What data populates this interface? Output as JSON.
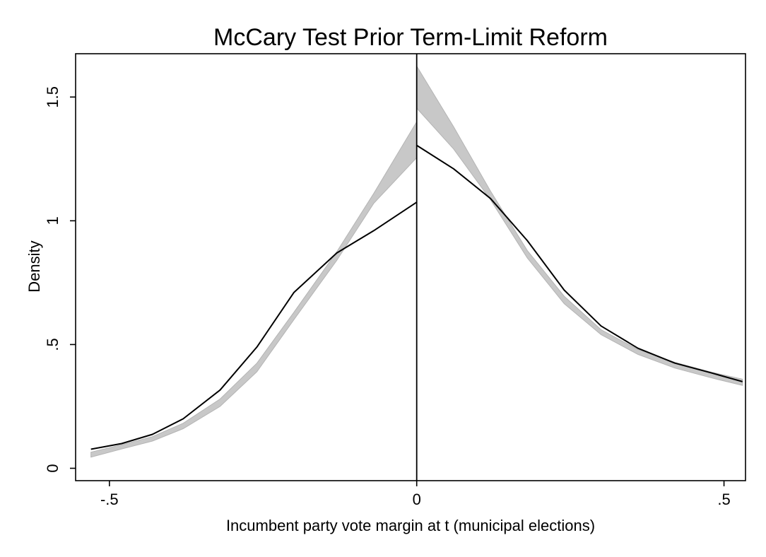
{
  "chart_data": {
    "type": "line",
    "title": "McCary Test Prior Term-Limit Reform",
    "xlabel": "Incumbent party vote margin at t (municipal elections)",
    "ylabel": "Density",
    "xlim": [
      -0.555,
      0.535
    ],
    "ylim": [
      -0.05,
      1.675
    ],
    "x_ticks": [
      {
        "value": -0.5,
        "label": "-.5"
      },
      {
        "value": 0,
        "label": "0"
      },
      {
        "value": 0.5,
        "label": ".5"
      }
    ],
    "y_ticks": [
      {
        "value": 0,
        "label": "0"
      },
      {
        "value": 0.5,
        "label": ".5"
      },
      {
        "value": 1,
        "label": "1"
      },
      {
        "value": 1.5,
        "label": "1.5"
      }
    ],
    "grid": false,
    "cutoff": 0,
    "colors": {
      "line": "#000000",
      "band": "#c8c8c8",
      "band_edge": "#b4b4b4",
      "cutoff_line": "#000000"
    },
    "series": [
      {
        "kind": "line",
        "segment": "left",
        "x": [
          -0.53,
          -0.48,
          -0.43,
          -0.38,
          -0.32,
          -0.26,
          -0.2,
          -0.13,
          -0.07,
          0.0
        ],
        "y": [
          0.077,
          0.1,
          0.137,
          0.2,
          0.316,
          0.49,
          0.71,
          0.87,
          0.96,
          1.075
        ]
      },
      {
        "kind": "line",
        "segment": "right",
        "x": [
          0.0,
          0.06,
          0.12,
          0.18,
          0.24,
          0.3,
          0.36,
          0.42,
          0.48,
          0.53
        ],
        "y": [
          1.305,
          1.21,
          1.09,
          0.92,
          0.72,
          0.575,
          0.485,
          0.425,
          0.385,
          0.35
        ]
      },
      {
        "kind": "band",
        "segment": "left",
        "x": [
          -0.53,
          -0.48,
          -0.43,
          -0.38,
          -0.32,
          -0.26,
          -0.2,
          -0.13,
          -0.07,
          0.0
        ],
        "lower": [
          0.045,
          0.078,
          0.11,
          0.16,
          0.25,
          0.39,
          0.6,
          0.84,
          1.07,
          1.255
        ],
        "upper": [
          0.065,
          0.095,
          0.128,
          0.182,
          0.28,
          0.425,
          0.63,
          0.875,
          1.11,
          1.4
        ]
      },
      {
        "kind": "band",
        "segment": "right",
        "x": [
          0.0,
          0.06,
          0.12,
          0.18,
          0.24,
          0.3,
          0.36,
          0.42,
          0.48,
          0.53
        ],
        "lower": [
          1.455,
          1.29,
          1.085,
          0.85,
          0.665,
          0.54,
          0.46,
          0.405,
          0.365,
          0.335
        ],
        "upper": [
          1.625,
          1.38,
          1.12,
          0.88,
          0.695,
          0.56,
          0.48,
          0.428,
          0.388,
          0.36
        ]
      }
    ]
  }
}
